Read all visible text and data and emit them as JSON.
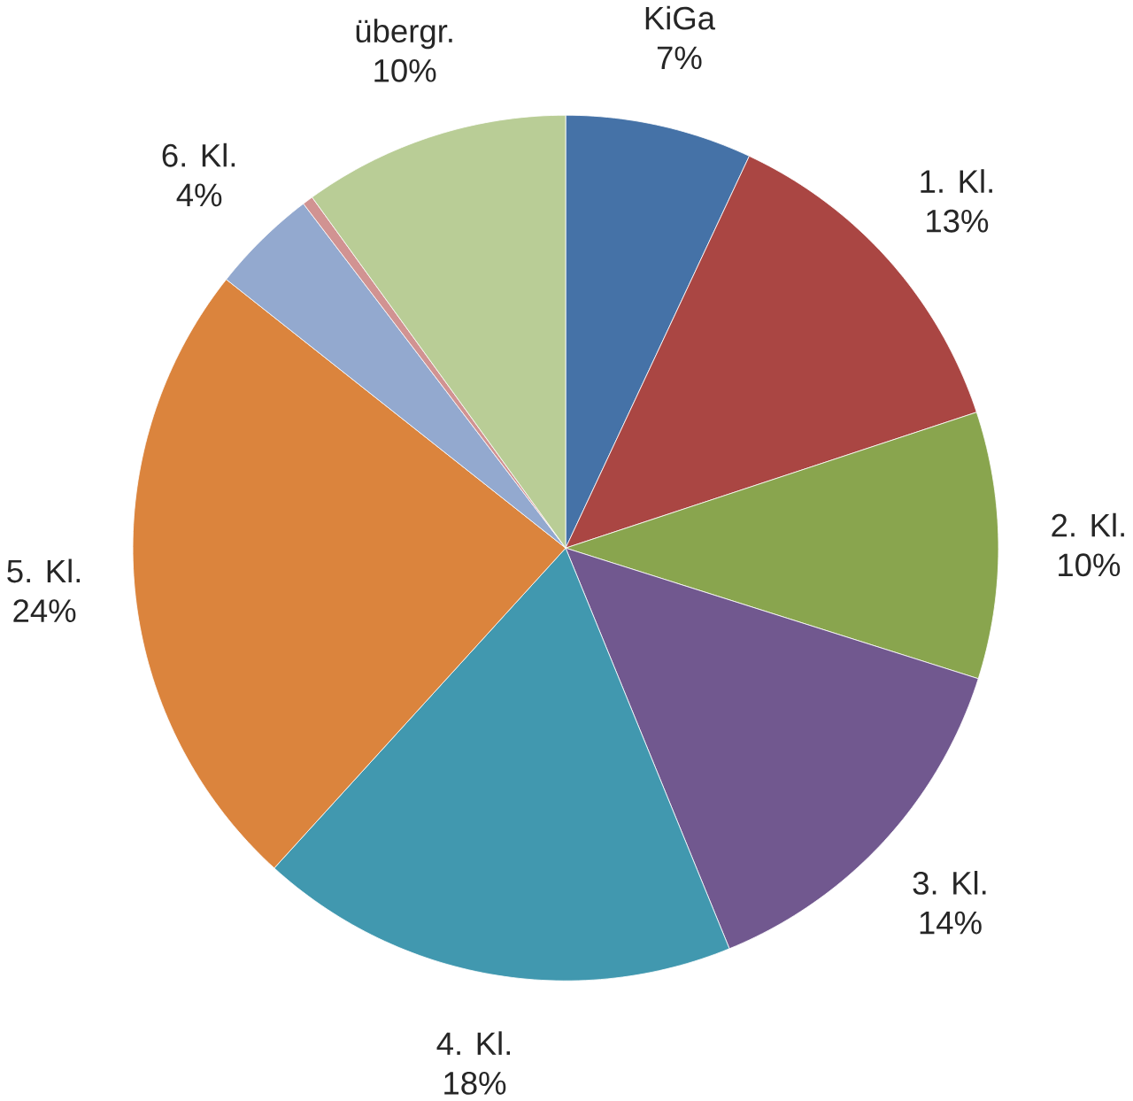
{
  "chart_data": {
    "type": "pie",
    "categories": [
      "KiGa",
      "1. Kl.",
      "2. Kl.",
      "3. Kl.",
      "4. Kl.",
      "5. Kl.",
      "6. Kl.",
      null,
      "übergr."
    ],
    "values": [
      7,
      13,
      10,
      14,
      18,
      24,
      4,
      0.4,
      10
    ],
    "value_labels": [
      "7%",
      "13%",
      "10%",
      "14%",
      "18%",
      "24%",
      "4%",
      null,
      "10%"
    ],
    "colors": [
      "#4572a7",
      "#aa4643",
      "#89a54e",
      "#71588f",
      "#4198af",
      "#db843d",
      "#93a9cf",
      "#d19392",
      "#b9cd96"
    ]
  }
}
